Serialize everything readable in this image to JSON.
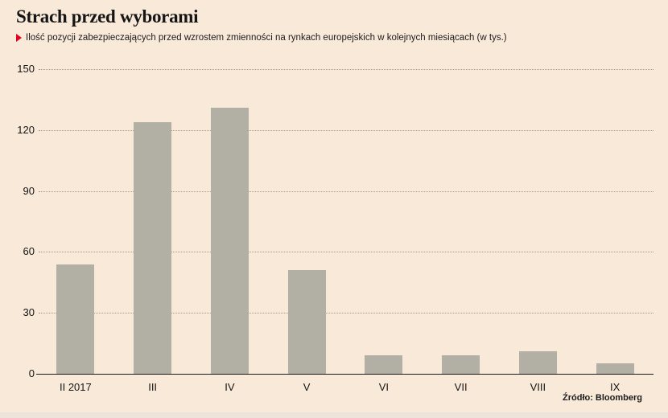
{
  "header": {
    "title": "Strach przed wyborami",
    "subtitle": "Ilość pozycji zabezpieczających przed wzrostem zmienności na rynkach europejskich w kolejnych miesiącach (w tys.)",
    "bullet_icon": "red-right-triangle"
  },
  "footer": {
    "source": "Źródło: Bloomberg"
  },
  "colors": {
    "background": "#f9e9d9",
    "bar": "#b2b0a5",
    "grid": "#aa9483",
    "axis": "#1a1a1a",
    "text": "#151515",
    "accent_red": "#e2001a",
    "bottom_strip": "#eee3db"
  },
  "chart_data": {
    "type": "bar",
    "title": "Strach przed wyborami",
    "subtitle": "Ilość pozycji zabezpieczających przed wzrostem zmienności na rynkach europejskich w kolejnych miesiącach (w tys.)",
    "source": "Źródło: Bloomberg",
    "categories": [
      "II 2017",
      "III",
      "IV",
      "V",
      "VI",
      "VII",
      "VIII",
      "IX"
    ],
    "values": [
      54,
      124,
      131,
      51,
      9,
      9,
      11,
      5
    ],
    "xlabel": "",
    "ylabel": "",
    "unit": "tys.",
    "yticks": [
      0,
      30,
      60,
      90,
      120,
      150
    ],
    "ylim": [
      0,
      150
    ],
    "grid": "horizontal-dotted",
    "legend": "none",
    "bar_color": "#b2b0a5"
  }
}
